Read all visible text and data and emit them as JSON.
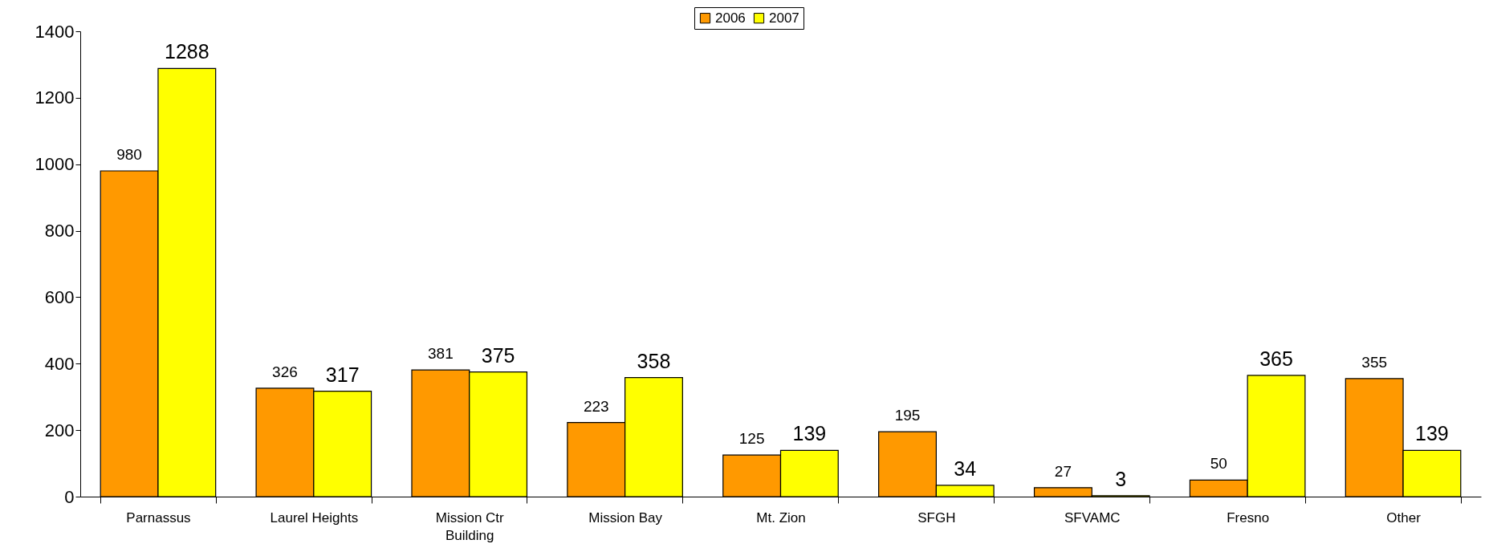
{
  "chart_data": {
    "type": "bar",
    "categories": [
      "Parnassus",
      "Laurel Heights",
      "Mission Ctr Building",
      "Mission Bay",
      "Mt. Zion",
      "SFGH",
      "SFVAMC",
      "Fresno",
      "Other"
    ],
    "series": [
      {
        "name": "2006",
        "color": "#ff9900",
        "values": [
          980,
          326,
          381,
          223,
          125,
          195,
          27,
          50,
          355
        ]
      },
      {
        "name": "2007",
        "color": "#ffff00",
        "values": [
          1288,
          317,
          375,
          358,
          139,
          34,
          3,
          365,
          139
        ]
      }
    ],
    "ylim": [
      0,
      1400
    ],
    "yticks": [
      0,
      200,
      400,
      600,
      800,
      1000,
      1200,
      1400
    ],
    "grid": false,
    "legend": "top",
    "data_labels": true
  }
}
